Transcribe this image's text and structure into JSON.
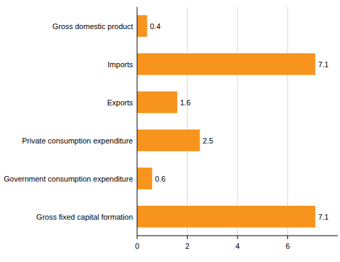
{
  "chart_data": {
    "type": "bar",
    "orientation": "horizontal",
    "categories": [
      "Gross domestic product",
      "Imports",
      "Exports",
      "Private consumption expenditure",
      "Government consumption expenditure",
      "Gross fixed capital formation"
    ],
    "values": [
      0.4,
      7.1,
      1.6,
      2.5,
      0.6,
      7.1
    ],
    "color": "#f7941d",
    "xlim": [
      0,
      8
    ],
    "xticks": [
      0,
      2,
      4,
      6
    ],
    "grid": true,
    "data_labels": true
  }
}
